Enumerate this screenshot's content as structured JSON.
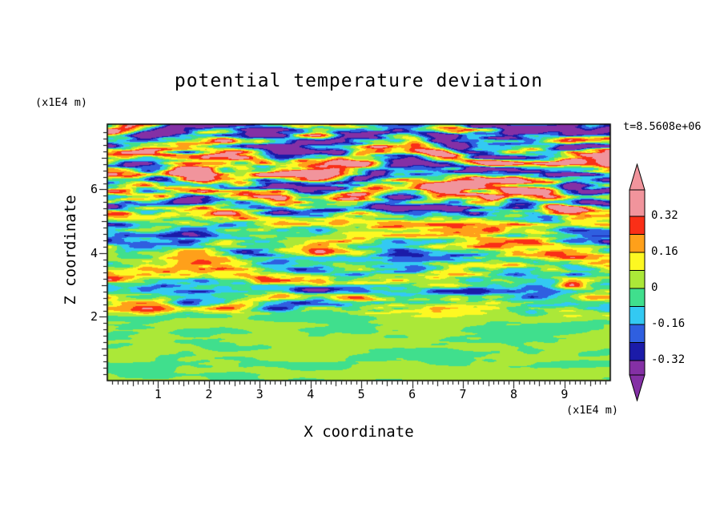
{
  "chart_data": {
    "type": "heatmap",
    "title": "potential temperature deviation",
    "timestamp_label": "t=8.5608e+06",
    "x_axis": {
      "label": "X coordinate",
      "units": "(x1E4 m)",
      "range": [
        0,
        9.9
      ],
      "major_ticks": [
        1,
        2,
        3,
        4,
        5,
        6,
        7,
        8,
        9
      ],
      "minor_tick_step": 0.1
    },
    "z_axis": {
      "label": "Z coordinate",
      "units": "(x1E4 m)",
      "range": [
        0,
        8.05
      ],
      "major_ticks": [
        2,
        4,
        6
      ],
      "minor_tick_step": 0.2
    },
    "colorbar": {
      "tick_labels": [
        "0.32",
        "0.16",
        "0",
        "-0.16",
        "-0.32"
      ],
      "tick_values": [
        0.32,
        0.16,
        0,
        -0.16,
        -0.32
      ],
      "bin_edges": [
        -0.32,
        -0.24,
        -0.16,
        -0.08,
        0,
        0.08,
        0.16,
        0.24,
        0.32
      ],
      "colors_low_to_high": [
        "#8430a5",
        "#1b1ba8",
        "#2f5fe0",
        "#33c9f2",
        "#40df8d",
        "#abe838",
        "#fdf822",
        "#ffa01a",
        "#fa2f17",
        "#f1949c"
      ],
      "below_range_arrow_color": "#8430a5",
      "above_range_arrow_color": "#f1949c"
    },
    "field_summary": {
      "regions": [
        {
          "z_range": [
            0,
            2
          ],
          "character": "weak near-zero anomalies: smooth interleaved green and yellow-green patches"
        },
        {
          "z_range": [
            2,
            5
          ],
          "character": "strong thin horizontal turbulent striations cycling through navy, blue, cyan, green, yellow, orange and red"
        },
        {
          "z_range": [
            5,
            8
          ],
          "character": "thick alternating salmon (> 0.32) and purple (< -0.32) wave layers, purple dominant at the very top"
        }
      ]
    }
  }
}
